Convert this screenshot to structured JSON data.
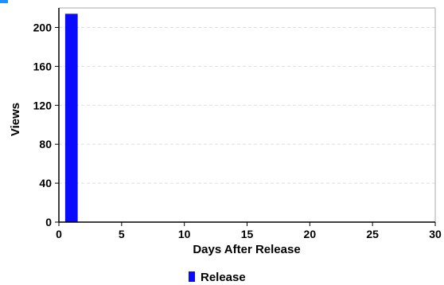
{
  "chart_data": {
    "type": "bar",
    "x": [
      1
    ],
    "series": [
      {
        "name": "Release",
        "values": [
          214
        ],
        "color": "#0a0aff"
      }
    ],
    "xlabel": "Days After Release",
    "ylabel": "Views",
    "xlim": [
      0,
      30
    ],
    "ylim": [
      0,
      220
    ],
    "xticks": [
      0,
      5,
      10,
      15,
      20,
      25,
      30
    ],
    "yticks": [
      0,
      40,
      80,
      120,
      160,
      200
    ],
    "grid": true,
    "legend_position": "bottom-center",
    "colors": {
      "bar": "#0a0aff",
      "grid": "#dddddd",
      "frame": "#aaaaaa",
      "accent_mark": "#1e90ff"
    }
  }
}
